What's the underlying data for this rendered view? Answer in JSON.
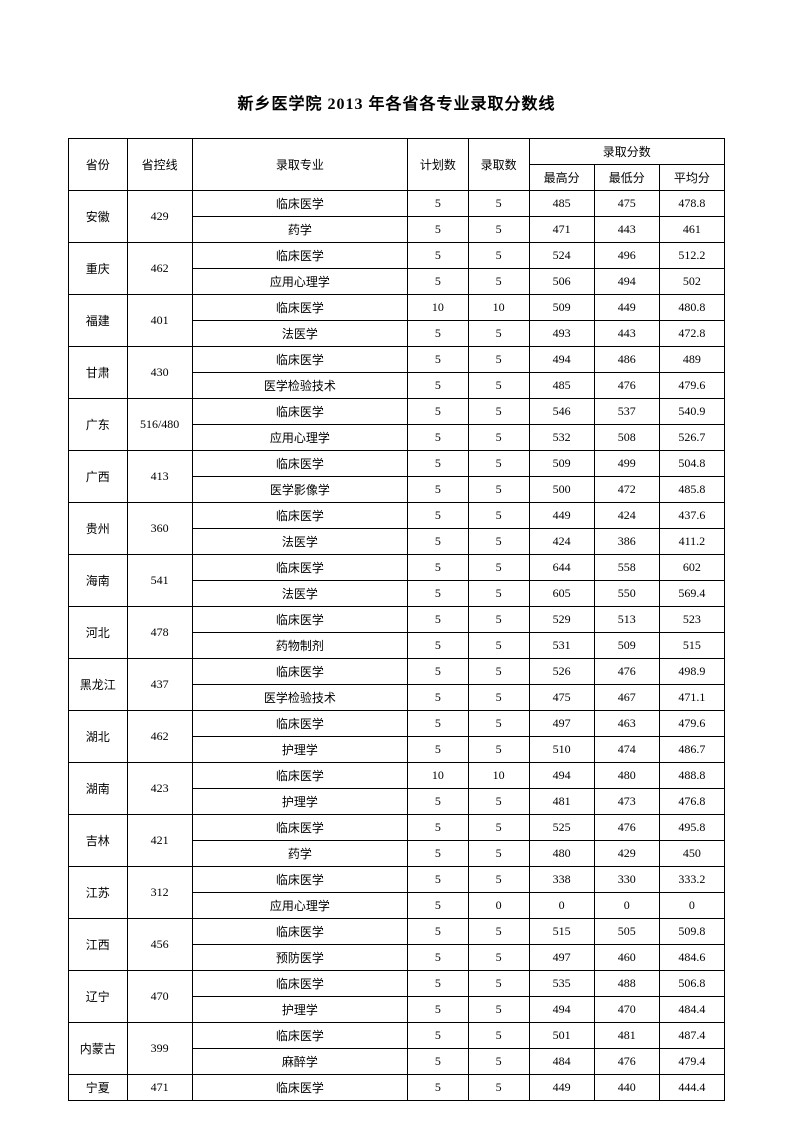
{
  "title": "新乡医学院 2013 年各省各专业录取分数线",
  "headers": {
    "province": "省份",
    "control_line": "省控线",
    "major": "录取专业",
    "plan": "计划数",
    "admitted": "录取数",
    "score_group": "录取分数",
    "max": "最高分",
    "min": "最低分",
    "avg": "平均分"
  },
  "rows": [
    {
      "province": "安徽",
      "line": "429",
      "major": "临床医学",
      "plan": "5",
      "adm": "5",
      "max": "485",
      "min": "475",
      "avg": "478.8"
    },
    {
      "province": "",
      "line": "",
      "major": "药学",
      "plan": "5",
      "adm": "5",
      "max": "471",
      "min": "443",
      "avg": "461"
    },
    {
      "province": "重庆",
      "line": "462",
      "major": "临床医学",
      "plan": "5",
      "adm": "5",
      "max": "524",
      "min": "496",
      "avg": "512.2"
    },
    {
      "province": "",
      "line": "",
      "major": "应用心理学",
      "plan": "5",
      "adm": "5",
      "max": "506",
      "min": "494",
      "avg": "502"
    },
    {
      "province": "福建",
      "line": "401",
      "major": "临床医学",
      "plan": "10",
      "adm": "10",
      "max": "509",
      "min": "449",
      "avg": "480.8"
    },
    {
      "province": "",
      "line": "",
      "major": "法医学",
      "plan": "5",
      "adm": "5",
      "max": "493",
      "min": "443",
      "avg": "472.8"
    },
    {
      "province": "甘肃",
      "line": "430",
      "major": "临床医学",
      "plan": "5",
      "adm": "5",
      "max": "494",
      "min": "486",
      "avg": "489"
    },
    {
      "province": "",
      "line": "",
      "major": "医学检验技术",
      "plan": "5",
      "adm": "5",
      "max": "485",
      "min": "476",
      "avg": "479.6"
    },
    {
      "province": "广东",
      "line": "516/480",
      "major": "临床医学",
      "plan": "5",
      "adm": "5",
      "max": "546",
      "min": "537",
      "avg": "540.9"
    },
    {
      "province": "",
      "line": "",
      "major": "应用心理学",
      "plan": "5",
      "adm": "5",
      "max": "532",
      "min": "508",
      "avg": "526.7"
    },
    {
      "province": "广西",
      "line": "413",
      "major": "临床医学",
      "plan": "5",
      "adm": "5",
      "max": "509",
      "min": "499",
      "avg": "504.8"
    },
    {
      "province": "",
      "line": "",
      "major": "医学影像学",
      "plan": "5",
      "adm": "5",
      "max": "500",
      "min": "472",
      "avg": "485.8"
    },
    {
      "province": "贵州",
      "line": "360",
      "major": "临床医学",
      "plan": "5",
      "adm": "5",
      "max": "449",
      "min": "424",
      "avg": "437.6"
    },
    {
      "province": "",
      "line": "",
      "major": "法医学",
      "plan": "5",
      "adm": "5",
      "max": "424",
      "min": "386",
      "avg": "411.2"
    },
    {
      "province": "海南",
      "line": "541",
      "major": "临床医学",
      "plan": "5",
      "adm": "5",
      "max": "644",
      "min": "558",
      "avg": "602"
    },
    {
      "province": "",
      "line": "",
      "major": "法医学",
      "plan": "5",
      "adm": "5",
      "max": "605",
      "min": "550",
      "avg": "569.4"
    },
    {
      "province": "河北",
      "line": "478",
      "major": "临床医学",
      "plan": "5",
      "adm": "5",
      "max": "529",
      "min": "513",
      "avg": "523"
    },
    {
      "province": "",
      "line": "",
      "major": "药物制剂",
      "plan": "5",
      "adm": "5",
      "max": "531",
      "min": "509",
      "avg": "515"
    },
    {
      "province": "黑龙江",
      "line": "437",
      "major": "临床医学",
      "plan": "5",
      "adm": "5",
      "max": "526",
      "min": "476",
      "avg": "498.9"
    },
    {
      "province": "",
      "line": "",
      "major": "医学检验技术",
      "plan": "5",
      "adm": "5",
      "max": "475",
      "min": "467",
      "avg": "471.1"
    },
    {
      "province": "湖北",
      "line": "462",
      "major": "临床医学",
      "plan": "5",
      "adm": "5",
      "max": "497",
      "min": "463",
      "avg": "479.6"
    },
    {
      "province": "",
      "line": "",
      "major": "护理学",
      "plan": "5",
      "adm": "5",
      "max": "510",
      "min": "474",
      "avg": "486.7"
    },
    {
      "province": "湖南",
      "line": "423",
      "major": "临床医学",
      "plan": "10",
      "adm": "10",
      "max": "494",
      "min": "480",
      "avg": "488.8"
    },
    {
      "province": "",
      "line": "",
      "major": "护理学",
      "plan": "5",
      "adm": "5",
      "max": "481",
      "min": "473",
      "avg": "476.8"
    },
    {
      "province": "吉林",
      "line": "421",
      "major": "临床医学",
      "plan": "5",
      "adm": "5",
      "max": "525",
      "min": "476",
      "avg": "495.8"
    },
    {
      "province": "",
      "line": "",
      "major": "药学",
      "plan": "5",
      "adm": "5",
      "max": "480",
      "min": "429",
      "avg": "450"
    },
    {
      "province": "江苏",
      "line": "312",
      "major": "临床医学",
      "plan": "5",
      "adm": "5",
      "max": "338",
      "min": "330",
      "avg": "333.2"
    },
    {
      "province": "",
      "line": "",
      "major": "应用心理学",
      "plan": "5",
      "adm": "0",
      "max": "0",
      "min": "0",
      "avg": "0"
    },
    {
      "province": "江西",
      "line": "456",
      "major": "临床医学",
      "plan": "5",
      "adm": "5",
      "max": "515",
      "min": "505",
      "avg": "509.8"
    },
    {
      "province": "",
      "line": "",
      "major": "预防医学",
      "plan": "5",
      "adm": "5",
      "max": "497",
      "min": "460",
      "avg": "484.6"
    },
    {
      "province": "辽宁",
      "line": "470",
      "major": "临床医学",
      "plan": "5",
      "adm": "5",
      "max": "535",
      "min": "488",
      "avg": "506.8"
    },
    {
      "province": "",
      "line": "",
      "major": "护理学",
      "plan": "5",
      "adm": "5",
      "max": "494",
      "min": "470",
      "avg": "484.4"
    },
    {
      "province": "内蒙古",
      "line": "399",
      "major": "临床医学",
      "plan": "5",
      "adm": "5",
      "max": "501",
      "min": "481",
      "avg": "487.4"
    },
    {
      "province": "",
      "line": "",
      "major": "麻醉学",
      "plan": "5",
      "adm": "5",
      "max": "484",
      "min": "476",
      "avg": "479.4"
    },
    {
      "province": "宁夏",
      "line": "471",
      "major": "临床医学",
      "plan": "5",
      "adm": "5",
      "max": "449",
      "min": "440",
      "avg": "444.4"
    }
  ],
  "group_spans": [
    2,
    2,
    2,
    2,
    2,
    2,
    2,
    2,
    2,
    2,
    2,
    2,
    2,
    2,
    2,
    2,
    2,
    1
  ]
}
